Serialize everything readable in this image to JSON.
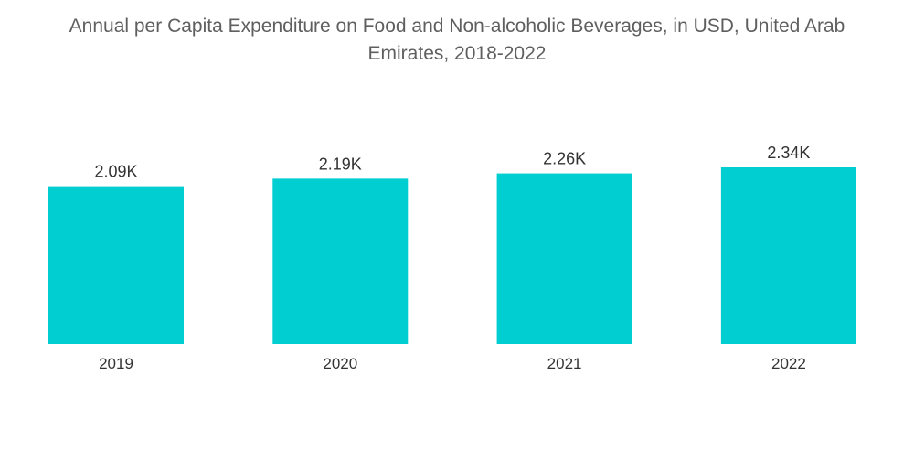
{
  "chart_data": {
    "type": "bar",
    "title": "Annual per Capita Expenditure on Food and Non-alcoholic Beverages, in USD, United Arab Emirates, 2018-2022",
    "title_line1": "Annual per Capita Expenditure on Food and Non-alcoholic Beverages, in USD, United Arab",
    "title_line2": "Emirates, 2018-2022",
    "categories": [
      "2019",
      "2020",
      "2021",
      "2022"
    ],
    "values": [
      2090,
      2190,
      2260,
      2340
    ],
    "data_labels": [
      "2.09K",
      "2.19K",
      "2.26K",
      "2.34K"
    ],
    "xlabel": "",
    "ylabel": "",
    "ylim": [
      0,
      2340
    ],
    "grid": false,
    "legend": "none",
    "bar_color": "#00CED1"
  }
}
